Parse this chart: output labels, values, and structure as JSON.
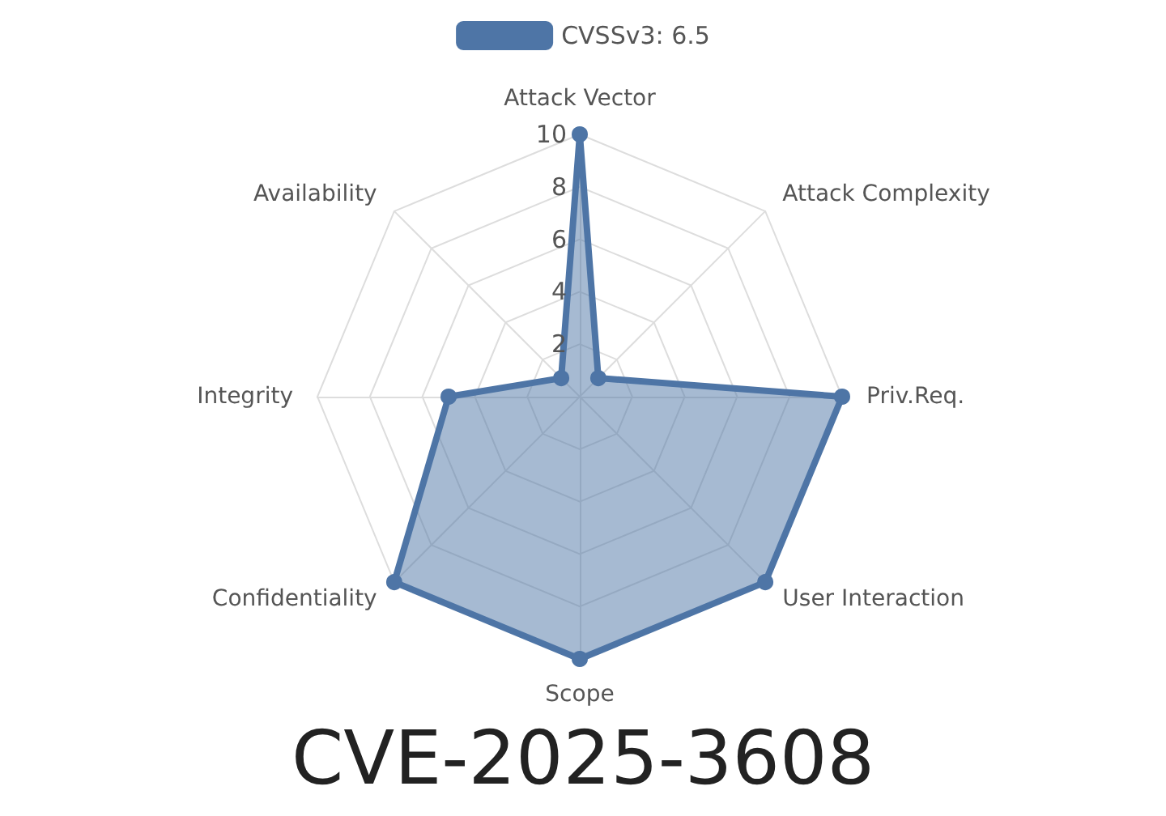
{
  "chart_data": {
    "type": "radar",
    "title": "CVE-2025-3608",
    "categories": [
      "Attack Vector",
      "Attack Complexity",
      "Priv.Req.",
      "User Interaction",
      "Scope",
      "Confidentiality",
      "Integrity",
      "Availability"
    ],
    "series": [
      {
        "name": "CVSSv3: 6.5",
        "color": "#4e75a6",
        "values": [
          10,
          1,
          10,
          10,
          10,
          10,
          5,
          1
        ]
      }
    ],
    "ylim": [
      0,
      10
    ],
    "yticks": [
      2,
      4,
      6,
      8,
      10
    ],
    "legend": "top",
    "marker": "circle",
    "grid": true
  }
}
